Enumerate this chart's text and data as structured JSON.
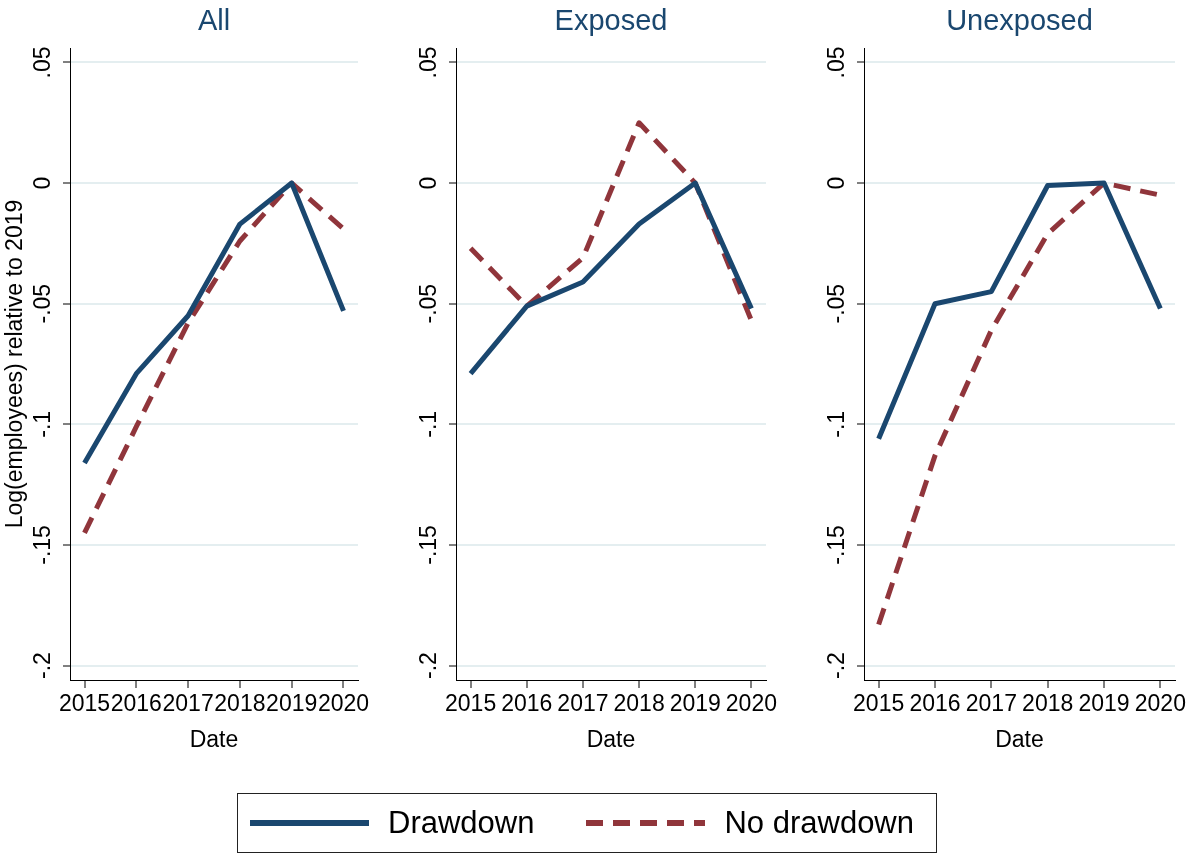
{
  "chart_data": [
    {
      "type": "line",
      "title": "All",
      "xlabel": "Date",
      "ylabel": "Log(employees) relative to 2019",
      "x": [
        2015,
        2016,
        2017,
        2018,
        2019,
        2020
      ],
      "xlim": [
        2014.72,
        2020.28
      ],
      "xticks": [
        2015,
        2016,
        2017,
        2018,
        2019,
        2020
      ],
      "ylim": [
        -0.206,
        0.056
      ],
      "yticks": [
        {
          "value": 0.05,
          "label": ".05"
        },
        {
          "value": 0,
          "label": "0"
        },
        {
          "value": -0.05,
          "label": "-.05"
        },
        {
          "value": -0.1,
          "label": "-.1"
        },
        {
          "value": -0.15,
          "label": "-.15"
        },
        {
          "value": -0.2,
          "label": "-.2"
        }
      ],
      "grid": "y",
      "legend": "bottom",
      "series": [
        {
          "name": "Drawdown",
          "color": "#1a476f",
          "line_style": "solid",
          "values": [
            -0.116,
            -0.079,
            -0.055,
            -0.017,
            0,
            -0.053
          ]
        },
        {
          "name": "No drawdown",
          "color": "#90353b",
          "line_style": "dashed",
          "values": [
            -0.145,
            -0.101,
            -0.058,
            -0.024,
            0,
            -0.019
          ]
        }
      ]
    },
    {
      "type": "line",
      "title": "Exposed",
      "xlabel": "Date",
      "x": [
        2015,
        2016,
        2017,
        2018,
        2019,
        2020
      ],
      "xlim": [
        2014.74,
        2020.26
      ],
      "xticks": [
        2015,
        2016,
        2017,
        2018,
        2019,
        2020
      ],
      "ylim": [
        -0.206,
        0.056
      ],
      "yticks": [
        {
          "value": 0.05,
          "label": ".05"
        },
        {
          "value": 0,
          "label": "0"
        },
        {
          "value": -0.05,
          "label": "-.05"
        },
        {
          "value": -0.1,
          "label": "-.1"
        },
        {
          "value": -0.15,
          "label": "-.15"
        },
        {
          "value": -0.2,
          "label": "-.2"
        }
      ],
      "grid": "y",
      "series": [
        {
          "color": "#1a476f",
          "line_style": "solid",
          "values": [
            -0.079,
            -0.051,
            -0.041,
            -0.017,
            0,
            -0.052
          ]
        },
        {
          "color": "#90353b",
          "line_style": "dashed",
          "values": [
            -0.027,
            -0.051,
            -0.031,
            0.025,
            0,
            -0.057
          ]
        }
      ]
    },
    {
      "type": "line",
      "title": "Unexposed",
      "xlabel": "Date",
      "x": [
        2015,
        2016,
        2017,
        2018,
        2019,
        2020
      ],
      "xlim": [
        2014.74,
        2020.26
      ],
      "xticks": [
        2015,
        2016,
        2017,
        2018,
        2019,
        2020
      ],
      "ylim": [
        -0.206,
        0.056
      ],
      "yticks": [
        {
          "value": 0.05,
          "label": ".05"
        },
        {
          "value": 0,
          "label": "0"
        },
        {
          "value": -0.05,
          "label": "-.05"
        },
        {
          "value": -0.1,
          "label": "-.1"
        },
        {
          "value": -0.15,
          "label": "-.15"
        },
        {
          "value": -0.2,
          "label": "-.2"
        }
      ],
      "grid": "y",
      "series": [
        {
          "color": "#1a476f",
          "line_style": "solid",
          "values": [
            -0.106,
            -0.05,
            -0.045,
            -0.001,
            0,
            -0.052
          ]
        },
        {
          "color": "#90353b",
          "line_style": "dashed",
          "values": [
            -0.183,
            -0.113,
            -0.061,
            -0.021,
            0,
            -0.005
          ]
        }
      ]
    }
  ]
}
